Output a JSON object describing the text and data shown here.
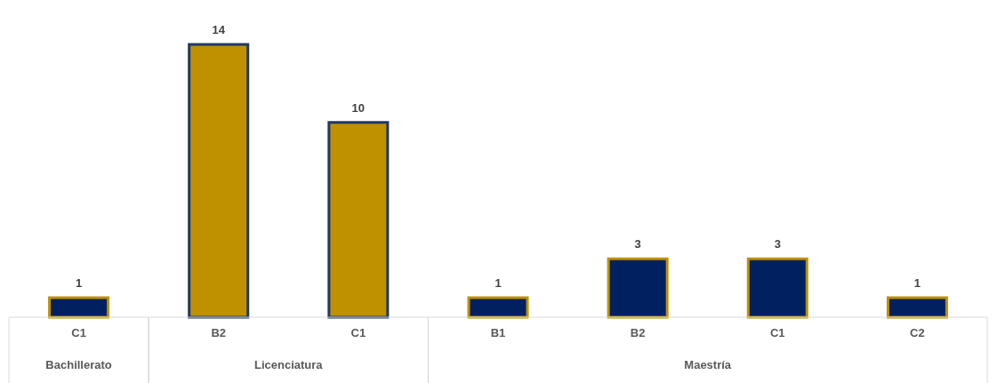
{
  "chart_data": {
    "type": "bar",
    "categories": [
      "C1",
      "B2",
      "C1",
      "B1",
      "B2",
      "C1",
      "C2"
    ],
    "values": [
      1,
      14,
      10,
      1,
      3,
      3,
      1
    ],
    "colors": [
      "#002060",
      "#bf9000",
      "#bf9000",
      "#002060",
      "#002060",
      "#002060",
      "#002060"
    ],
    "data_labels": true,
    "annotations": [
      "Bachillerato",
      "Licenciatura",
      "Maestría"
    ]
  }
}
